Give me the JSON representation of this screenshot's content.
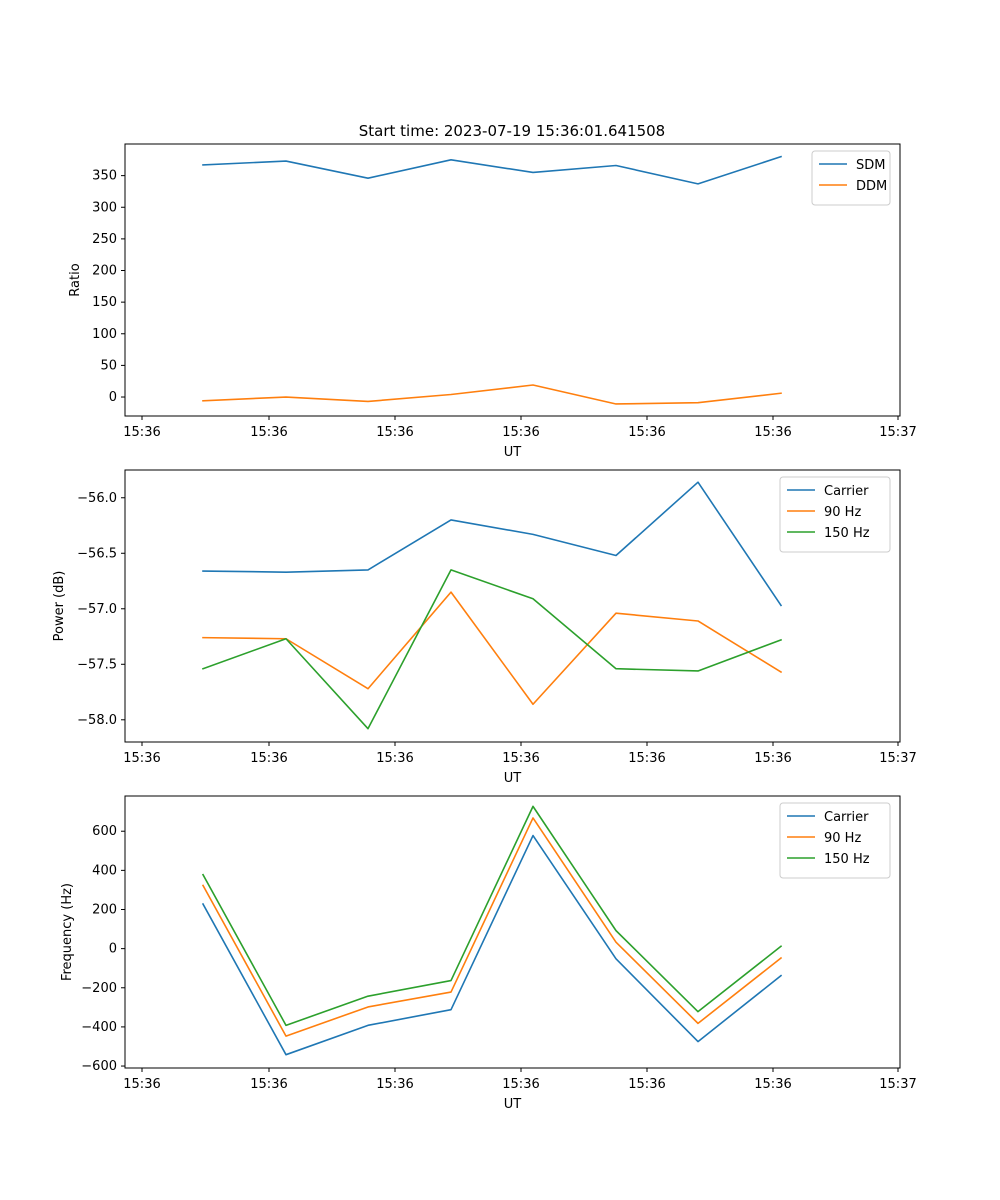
{
  "title": "Start time: 2023-07-19 15:36:01.641508",
  "chart_data": [
    {
      "type": "line",
      "title": "Start time: 2023-07-19 15:36:01.641508",
      "xlabel": "UT",
      "ylabel": "Ratio",
      "x_tick_labels": [
        "15:36",
        "15:36",
        "15:36",
        "15:36",
        "15:36",
        "15:36",
        "15:36"
      ],
      "x_last_tick_label": "15:37",
      "ylim": [
        -30,
        400
      ],
      "y_ticks": [
        0,
        50,
        100,
        150,
        200,
        250,
        300,
        350
      ],
      "y_tick_labels": [
        "0",
        "50",
        "100",
        "150",
        "200",
        "250",
        "300",
        "350"
      ],
      "legend_position": "top-right",
      "series": [
        {
          "name": "SDM",
          "color": "#1f77b4",
          "values": [
            367,
            373,
            346,
            375,
            355,
            366,
            337,
            380
          ]
        },
        {
          "name": "DDM",
          "color": "#ff7f0e",
          "values": [
            -6,
            0,
            -7,
            4,
            19,
            -11,
            -9,
            6
          ]
        }
      ]
    },
    {
      "type": "line",
      "title": "",
      "xlabel": "UT",
      "ylabel": "Power (dB)",
      "x_tick_labels": [
        "15:36",
        "15:36",
        "15:36",
        "15:36",
        "15:36",
        "15:36",
        "15:36"
      ],
      "x_last_tick_label": "15:37",
      "ylim": [
        -58.2,
        -55.75
      ],
      "y_ticks": [
        -58.0,
        -57.5,
        -57.0,
        -56.5,
        -56.0
      ],
      "y_tick_labels": [
        "−58.0",
        "−57.5",
        "−57.0",
        "−56.5",
        "−56.0"
      ],
      "legend_position": "top-right",
      "series": [
        {
          "name": "Carrier",
          "color": "#1f77b4",
          "values": [
            -56.66,
            -56.67,
            -56.65,
            -56.2,
            -56.33,
            -56.52,
            -55.86,
            -56.97
          ]
        },
        {
          "name": "90 Hz",
          "color": "#ff7f0e",
          "values": [
            -57.26,
            -57.27,
            -57.72,
            -56.85,
            -57.86,
            -57.04,
            -57.11,
            -57.57
          ]
        },
        {
          "name": "150 Hz",
          "color": "#2ca02c",
          "values": [
            -57.54,
            -57.27,
            -58.08,
            -56.65,
            -56.91,
            -57.54,
            -57.56,
            -57.28
          ]
        }
      ]
    },
    {
      "type": "line",
      "title": "",
      "xlabel": "UT",
      "ylabel": "Frequency (Hz)",
      "x_tick_labels": [
        "15:36",
        "15:36",
        "15:36",
        "15:36",
        "15:36",
        "15:36",
        "15:36"
      ],
      "x_last_tick_label": "15:37",
      "ylim": [
        -610,
        780
      ],
      "y_ticks": [
        -600,
        -400,
        -200,
        0,
        200,
        400,
        600
      ],
      "y_tick_labels": [
        "−600",
        "−400",
        "−200",
        "0",
        "200",
        "400",
        "600"
      ],
      "legend_position": "top-right",
      "series": [
        {
          "name": "Carrier",
          "color": "#1f77b4",
          "values": [
            228,
            -542,
            -392,
            -312,
            578,
            -52,
            -475,
            -138
          ]
        },
        {
          "name": "90 Hz",
          "color": "#ff7f0e",
          "values": [
            323,
            -447,
            -298,
            -222,
            668,
            33,
            -382,
            -48
          ]
        },
        {
          "name": "150 Hz",
          "color": "#2ca02c",
          "values": [
            378,
            -392,
            -243,
            -163,
            727,
            92,
            -322,
            12
          ]
        }
      ]
    }
  ]
}
